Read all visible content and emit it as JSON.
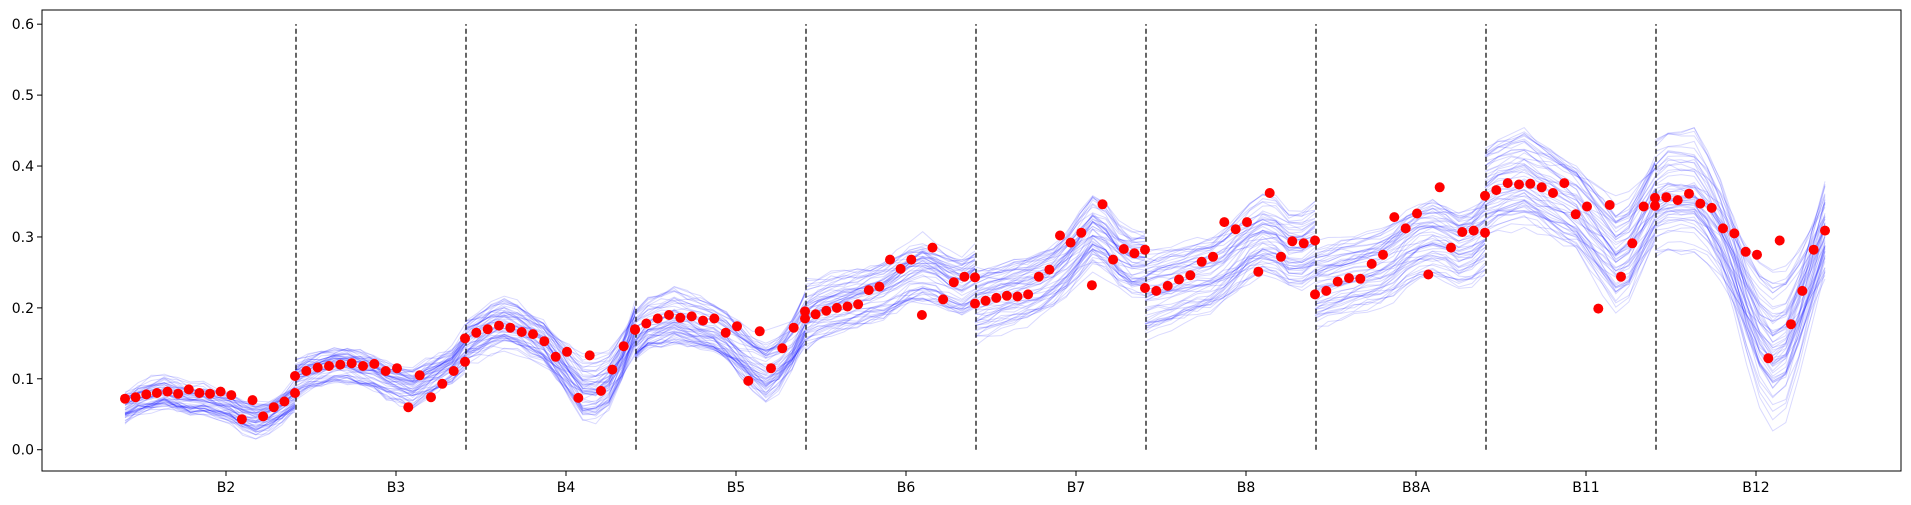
{
  "chart_data": {
    "type": "line",
    "title": "",
    "xlabel": "",
    "ylabel": "",
    "ylim": [
      -0.03,
      0.62
    ],
    "yticks": [
      "0.0",
      "0.1",
      "0.2",
      "0.3",
      "0.4",
      "0.5",
      "0.6"
    ],
    "categories": [
      "B2",
      "B3",
      "B4",
      "B5",
      "B6",
      "B7",
      "B8",
      "B8A",
      "B11",
      "B12"
    ],
    "band_divider_ymax": 0.6,
    "grid": false,
    "legend": "none",
    "colors": {
      "ensemble": "#0000ff",
      "observed": "#ff0000",
      "divider": "#000000"
    },
    "series": [
      {
        "role": "ensemble",
        "segments": [
          [
            0.06,
            0.07,
            0.075,
            0.08,
            0.075,
            0.07,
            0.07,
            0.065,
            0.06,
            0.05,
            0.045,
            0.05,
            0.06,
            0.075
          ],
          [
            0.1,
            0.11,
            0.115,
            0.12,
            0.12,
            0.115,
            0.11,
            0.1,
            0.095,
            0.09,
            0.1,
            0.11,
            0.12,
            0.14
          ],
          [
            0.15,
            0.16,
            0.17,
            0.175,
            0.17,
            0.16,
            0.15,
            0.13,
            0.11,
            0.09,
            0.09,
            0.1,
            0.13,
            0.17
          ],
          [
            0.16,
            0.175,
            0.18,
            0.185,
            0.18,
            0.175,
            0.17,
            0.16,
            0.145,
            0.13,
            0.12,
            0.13,
            0.15,
            0.18
          ],
          [
            0.19,
            0.2,
            0.205,
            0.21,
            0.215,
            0.22,
            0.225,
            0.235,
            0.245,
            0.25,
            0.245,
            0.235,
            0.23,
            0.24
          ],
          [
            0.21,
            0.215,
            0.22,
            0.225,
            0.23,
            0.235,
            0.245,
            0.26,
            0.28,
            0.3,
            0.29,
            0.27,
            0.26,
            0.26
          ],
          [
            0.225,
            0.23,
            0.235,
            0.24,
            0.245,
            0.25,
            0.26,
            0.275,
            0.29,
            0.3,
            0.295,
            0.28,
            0.28,
            0.29
          ],
          [
            0.23,
            0.235,
            0.24,
            0.245,
            0.25,
            0.255,
            0.265,
            0.28,
            0.29,
            0.295,
            0.29,
            0.28,
            0.285,
            0.3
          ],
          [
            0.36,
            0.37,
            0.375,
            0.38,
            0.37,
            0.36,
            0.35,
            0.34,
            0.32,
            0.3,
            0.28,
            0.29,
            0.32,
            0.35
          ],
          [
            0.34,
            0.35,
            0.35,
            0.35,
            0.33,
            0.3,
            0.26,
            0.21,
            0.17,
            0.15,
            0.16,
            0.2,
            0.25,
            0.3
          ]
        ]
      },
      {
        "role": "observed",
        "points": [
          [
            0.072,
            0.074,
            0.078,
            0.08,
            0.082,
            0.079,
            0.085,
            0.08,
            0.079,
            0.082,
            0.077,
            0.043,
            0.07,
            0.047,
            0.06,
            0.068,
            0.08
          ],
          [
            0.104,
            0.111,
            0.116,
            0.118,
            0.12,
            0.122,
            0.118,
            0.121,
            0.111,
            0.115,
            0.06,
            0.105,
            0.074,
            0.093,
            0.111,
            0.124
          ],
          [
            0.157,
            0.165,
            0.17,
            0.175,
            0.172,
            0.166,
            0.163,
            0.153,
            0.131,
            0.138,
            0.073,
            0.133,
            0.083,
            0.113,
            0.146,
            0.17
          ],
          [
            0.169,
            0.178,
            0.185,
            0.19,
            0.186,
            0.188,
            0.182,
            0.185,
            0.165,
            0.174,
            0.097,
            0.167,
            0.115,
            0.143,
            0.172,
            0.195
          ],
          [
            0.185,
            0.191,
            0.196,
            0.2,
            0.202,
            0.205,
            0.225,
            0.23,
            0.268,
            0.255,
            0.268,
            0.19,
            0.285,
            0.212,
            0.236,
            0.244,
            0.243
          ],
          [
            0.206,
            0.21,
            0.214,
            0.217,
            0.216,
            0.219,
            0.244,
            0.254,
            0.302,
            0.292,
            0.306,
            0.232,
            0.346,
            0.268,
            0.283,
            0.277,
            0.282
          ],
          [
            0.228,
            0.224,
            0.231,
            0.24,
            0.246,
            0.265,
            0.272,
            0.321,
            0.311,
            0.321,
            0.251,
            0.362,
            0.272,
            0.294,
            0.291,
            0.295
          ],
          [
            0.219,
            0.224,
            0.237,
            0.242,
            0.241,
            0.262,
            0.275,
            0.328,
            0.312,
            0.333,
            0.247,
            0.37,
            0.285,
            0.307,
            0.309,
            0.306
          ],
          [
            0.358,
            0.366,
            0.376,
            0.374,
            0.375,
            0.37,
            0.362,
            0.376,
            0.332,
            0.343,
            0.199,
            0.345,
            0.244,
            0.291,
            0.343,
            0.355
          ],
          [
            0.344,
            0.356,
            0.352,
            0.361,
            0.347,
            0.341,
            0.312,
            0.305,
            0.279,
            0.275,
            0.129,
            0.295,
            0.177,
            0.224,
            0.282,
            0.309
          ]
        ]
      }
    ]
  }
}
